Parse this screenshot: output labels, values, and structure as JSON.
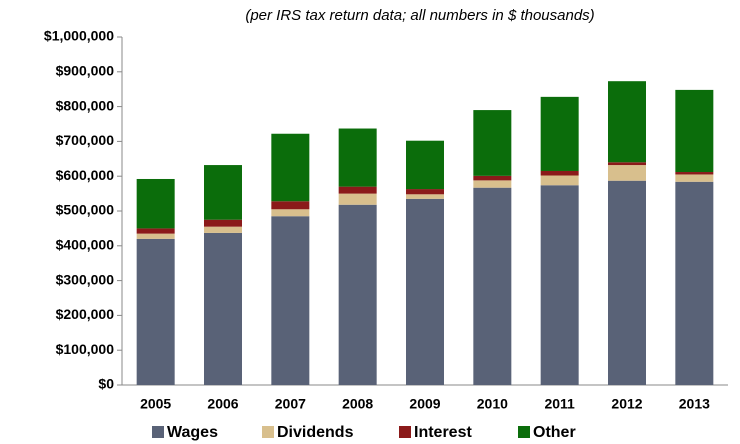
{
  "chart_data": {
    "type": "stacked_bar",
    "subtitle": "(per  IRS tax return data; all numbers in $ thousands)",
    "categories": [
      "2005",
      "2006",
      "2007",
      "2008",
      "2009",
      "2010",
      "2011",
      "2012",
      "2013"
    ],
    "series": [
      {
        "name": "Wages",
        "color": "#596277",
        "values": [
          420000,
          437000,
          485000,
          518000,
          535000,
          567000,
          574000,
          587000,
          584000
        ]
      },
      {
        "name": "Dividends",
        "color": "#d8bf8d",
        "values": [
          15000,
          18000,
          20000,
          32000,
          13000,
          21000,
          28000,
          45000,
          21000
        ]
      },
      {
        "name": "Interest",
        "color": "#8b1a1a",
        "values": [
          15000,
          20000,
          23000,
          20000,
          15000,
          13000,
          13000,
          8000,
          7000
        ]
      },
      {
        "name": "Other",
        "color": "#0b6d0b",
        "values": [
          142000,
          157000,
          194000,
          167000,
          139000,
          189000,
          213000,
          233000,
          236000
        ]
      }
    ],
    "ylim": [
      0,
      1000000
    ],
    "yticks": [
      {
        "value": 0,
        "label": "$0"
      },
      {
        "value": 100000,
        "label": "$100,000"
      },
      {
        "value": 200000,
        "label": "$200,000"
      },
      {
        "value": 300000,
        "label": "$300,000"
      },
      {
        "value": 400000,
        "label": "$400,000"
      },
      {
        "value": 500000,
        "label": "$500,000"
      },
      {
        "value": 600000,
        "label": "$600,000"
      },
      {
        "value": 700000,
        "label": "$700,000"
      },
      {
        "value": 800000,
        "label": "$800,000"
      },
      {
        "value": 900000,
        "label": "$900,000"
      },
      {
        "value": 1000000,
        "label": "$1,000,000"
      }
    ],
    "grid": false,
    "legend": "bottom"
  }
}
